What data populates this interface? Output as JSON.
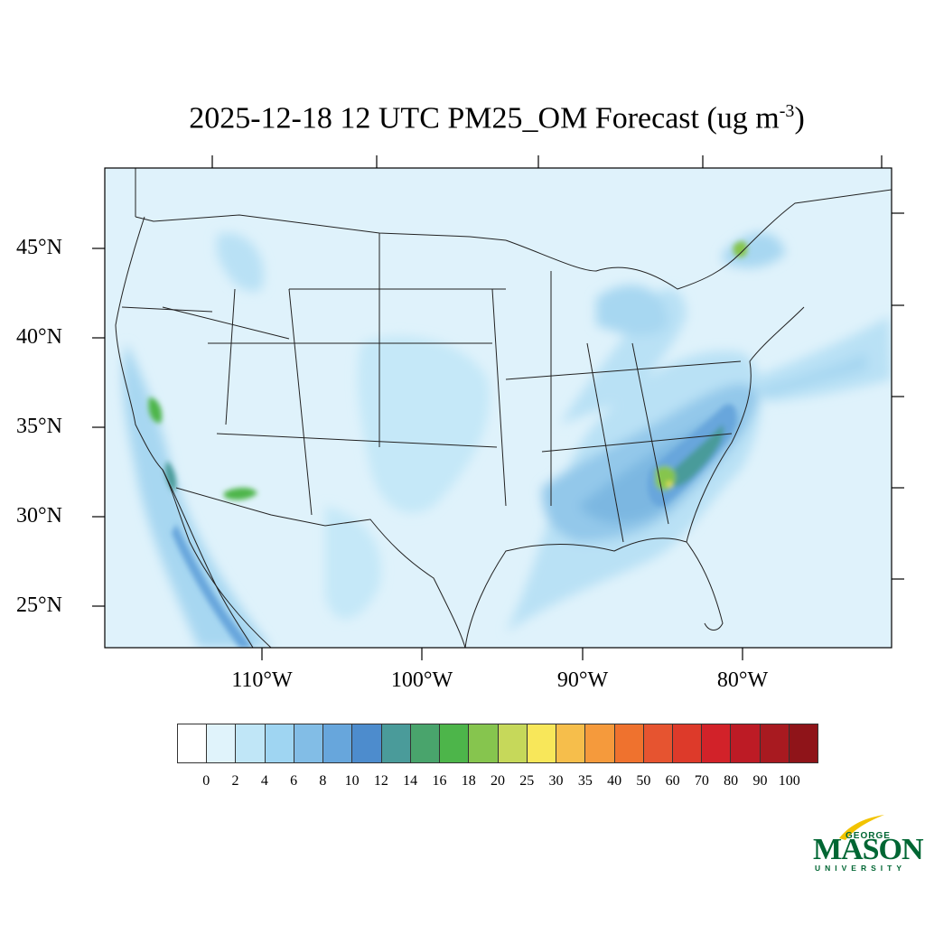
{
  "title": {
    "text": "2025-12-18 12 UTC PM25_OM Forecast (ug m",
    "superscript": "-3",
    "closing": ")"
  },
  "map": {
    "ocean_color": "#dff2fb",
    "land_color": "#dff2fb",
    "border_color": "#222222",
    "lat_labels": [
      "45°N",
      "40°N",
      "35°N",
      "30°N",
      "25°N"
    ],
    "lon_labels": [
      "110°W",
      "100°W",
      "90°W",
      "80°W"
    ]
  },
  "colorbar": {
    "colors": [
      "#ffffff",
      "#e0f3fb",
      "#c0e6f7",
      "#9fd5f2",
      "#82bde6",
      "#67a6dc",
      "#4d8ccd",
      "#4a9b9a",
      "#49a46c",
      "#4db54a",
      "#86c54e",
      "#c6d85a",
      "#f8e75a",
      "#f6be4b",
      "#f59a3c",
      "#ef722e",
      "#e65430",
      "#dd3a2a",
      "#d22229",
      "#bd1b25",
      "#a81a20",
      "#8f1419"
    ],
    "labels": [
      "0",
      "2",
      "4",
      "6",
      "8",
      "10",
      "12",
      "14",
      "16",
      "18",
      "20",
      "25",
      "30",
      "35",
      "40",
      "50",
      "60",
      "70",
      "80",
      "90",
      "100"
    ]
  },
  "logo": {
    "george": "GEORGE",
    "mason": "MASON",
    "university": "UNIVERSITY",
    "color": "#006633",
    "accent": "#f2c300"
  }
}
